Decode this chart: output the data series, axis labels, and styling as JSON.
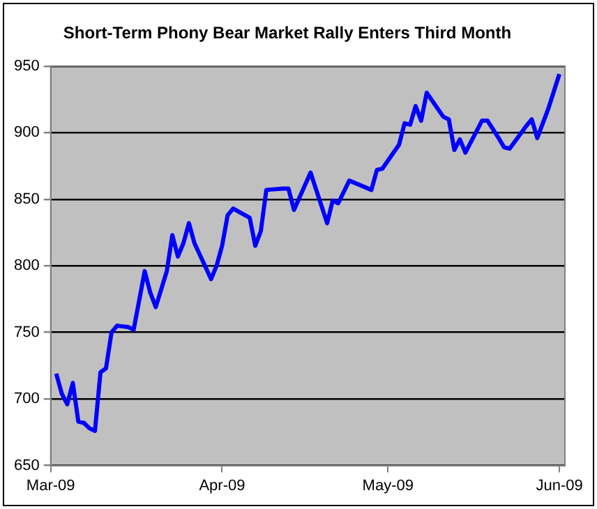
{
  "chart_data": {
    "type": "line",
    "title": "Short-Term Phony Bear Market Rally Enters Third Month",
    "x": [
      "2009-03-02",
      "2009-03-03",
      "2009-03-04",
      "2009-03-05",
      "2009-03-06",
      "2009-03-07",
      "2009-03-08",
      "2009-03-09",
      "2009-03-10",
      "2009-03-11",
      "2009-03-12",
      "2009-03-13",
      "2009-03-15",
      "2009-03-16",
      "2009-03-18",
      "2009-03-19",
      "2009-03-20",
      "2009-03-22",
      "2009-03-23",
      "2009-03-24",
      "2009-03-25",
      "2009-03-26",
      "2009-03-27",
      "2009-03-30",
      "2009-03-31",
      "2009-04-01",
      "2009-04-02",
      "2009-04-03",
      "2009-04-06",
      "2009-04-07",
      "2009-04-08",
      "2009-04-09",
      "2009-04-12",
      "2009-04-13",
      "2009-04-14",
      "2009-04-17",
      "2009-04-20",
      "2009-04-21",
      "2009-04-22",
      "2009-04-24",
      "2009-04-28",
      "2009-04-29",
      "2009-04-30",
      "2009-05-03",
      "2009-05-04",
      "2009-05-05",
      "2009-05-06",
      "2009-05-07",
      "2009-05-08",
      "2009-05-11",
      "2009-05-12",
      "2009-05-13",
      "2009-05-14",
      "2009-05-15",
      "2009-05-18",
      "2009-05-19",
      "2009-05-21",
      "2009-05-22",
      "2009-05-23",
      "2009-05-26",
      "2009-05-27",
      "2009-05-28",
      "2009-05-30",
      "2009-06-01"
    ],
    "series": [
      {
        "color": "#0000ff",
        "values": [
          719,
          704,
          696,
          712,
          683,
          682,
          678,
          676,
          720,
          723,
          750,
          755,
          754,
          752,
          796,
          780,
          769,
          796,
          823,
          807,
          817,
          832,
          817,
          790,
          800,
          815,
          838,
          843,
          836,
          815,
          826,
          857,
          858,
          858,
          842,
          870,
          832,
          849,
          847,
          864,
          857,
          872,
          873,
          891,
          907,
          906,
          920,
          909,
          930,
          912,
          910,
          887,
          895,
          885,
          909,
          909,
          896,
          889,
          888,
          905,
          910,
          896,
          918,
          944
        ]
      }
    ],
    "xlim": [
      "2009-03-01",
      "2009-06-02"
    ],
    "xticks": [
      {
        "value": "2009-03-01",
        "label": "Mar-09"
      },
      {
        "value": "2009-04-01",
        "label": "Apr-09"
      },
      {
        "value": "2009-05-01",
        "label": "May-09"
      },
      {
        "value": "2009-06-01",
        "label": "Jun-09"
      }
    ],
    "ylim": [
      650,
      950
    ],
    "yticks": [
      650,
      700,
      750,
      800,
      850,
      900,
      950
    ],
    "grid": "y",
    "legend": false,
    "marker": "none",
    "line_style": "solid"
  }
}
